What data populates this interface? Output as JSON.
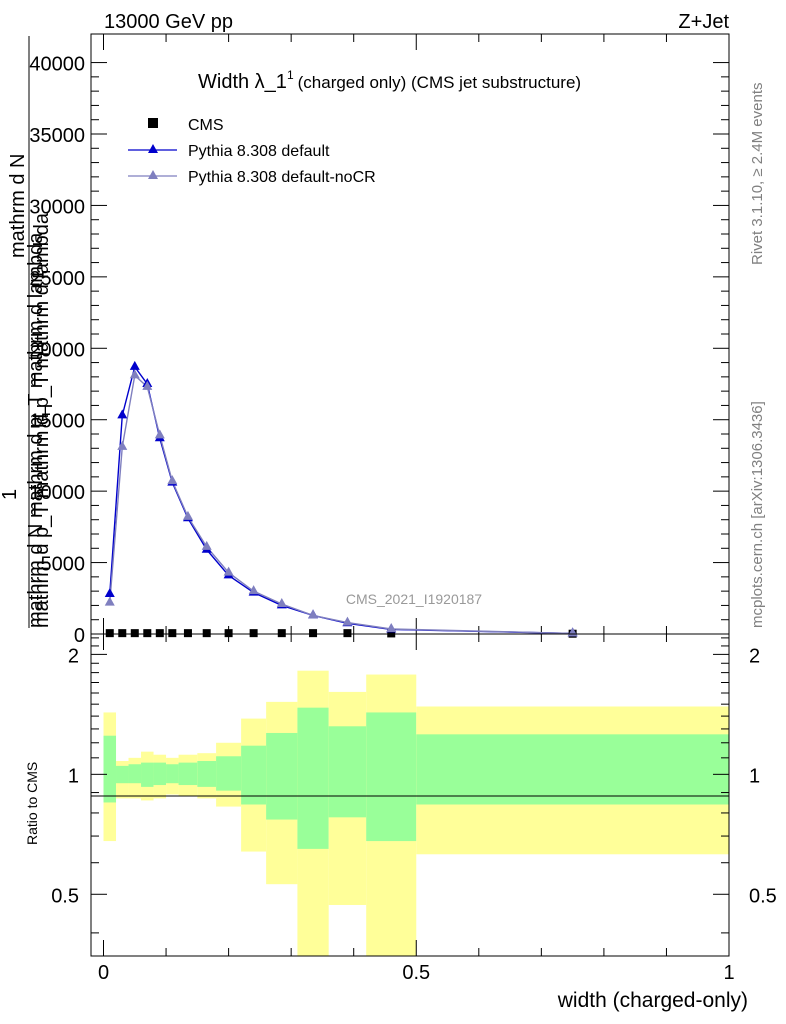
{
  "header": {
    "left": "13000 GeV pp",
    "right": "Z+Jet"
  },
  "side": {
    "rivet": "Rivet 3.1.10, ≥ 2.4M events",
    "mcplots": "mcplots.cern.ch [arXiv:1306.3436]"
  },
  "chart_data": [
    {
      "type": "line",
      "title_main": "Width λ_1",
      "title_sup": "1",
      "title_rest": "(charged only) (CMS jet substructure)",
      "watermark": "CMS_2021_I1920187",
      "ylabel_lines": [
        "mathrm d N",
        "mathrm d p_T mathrm d p_T mathrm d lambda",
        "1",
        "mathrm d N mathrm d p_T mathrm d lambda"
      ],
      "ylabel_main": "1",
      "xlim": [
        -0.02,
        1.0
      ],
      "ylim": [
        0,
        42000
      ],
      "yticks": [
        0,
        5000,
        10000,
        15000,
        20000,
        25000,
        30000,
        35000,
        40000
      ],
      "ytick_labels": [
        "0",
        "5000",
        "10000",
        "15000",
        "20000",
        "25000",
        "30000",
        "35000",
        "40000"
      ],
      "legend_position": "top-left",
      "legend": [
        {
          "name": "CMS",
          "marker": "square",
          "color": "#000000"
        },
        {
          "name": "Pythia 8.308 default",
          "marker": "triangle",
          "color": "#0000cc"
        },
        {
          "name": "Pythia 8.308 default-noCR",
          "marker": "triangle",
          "color": "#7f7fbf"
        }
      ],
      "series": [
        {
          "name": "CMS",
          "color": "#000000",
          "x": [
            0.01,
            0.03,
            0.05,
            0.07,
            0.09,
            0.11,
            0.135,
            0.165,
            0.2,
            0.24,
            0.285,
            0.335,
            0.39,
            0.46,
            0.75
          ],
          "y": [
            60,
            60,
            60,
            60,
            60,
            60,
            60,
            60,
            60,
            60,
            60,
            60,
            60,
            40,
            20
          ]
        },
        {
          "name": "Pythia 8.308 default",
          "color": "#0000cc",
          "x": [
            0.01,
            0.03,
            0.05,
            0.07,
            0.09,
            0.11,
            0.135,
            0.165,
            0.2,
            0.24,
            0.285,
            0.335,
            0.39,
            0.46,
            0.75
          ],
          "y": [
            2800,
            15300,
            18700,
            17500,
            13700,
            10600,
            8100,
            5900,
            4100,
            2900,
            2000,
            1300,
            750,
            320,
            40
          ]
        },
        {
          "name": "Pythia 8.308 default-noCR",
          "color": "#7f7fbf",
          "x": [
            0.01,
            0.03,
            0.05,
            0.07,
            0.09,
            0.11,
            0.135,
            0.165,
            0.2,
            0.24,
            0.285,
            0.335,
            0.39,
            0.46,
            0.75
          ],
          "y": [
            2200,
            13100,
            18100,
            17300,
            13900,
            10700,
            8200,
            6100,
            4300,
            3000,
            2100,
            1300,
            800,
            350,
            40
          ]
        }
      ]
    },
    {
      "type": "area",
      "ylabel": "Ratio to CMS",
      "xlabel": "width (charged-only)",
      "xlim": [
        -0.02,
        1.0
      ],
      "ylim": [
        0.35,
        2.25
      ],
      "xticks": [
        0,
        0.5,
        1
      ],
      "xtick_labels": [
        "0",
        "0.5",
        "1"
      ],
      "yticks": [
        0.5,
        1,
        2
      ],
      "ytick_labels": [
        "0.5",
        "1",
        "2"
      ],
      "band_colors": {
        "stat": "#99ff99",
        "total": "#ffff99"
      },
      "bins": [
        {
          "x0": 0.0,
          "x1": 0.02,
          "outer_lo": 0.68,
          "outer_hi": 1.43,
          "inner_lo": 0.85,
          "inner_hi": 1.25
        },
        {
          "x0": 0.02,
          "x1": 0.04,
          "outer_lo": 0.87,
          "outer_hi": 1.08,
          "inner_lo": 0.95,
          "inner_hi": 1.05
        },
        {
          "x0": 0.04,
          "x1": 0.06,
          "outer_lo": 0.87,
          "outer_hi": 1.1,
          "inner_lo": 0.95,
          "inner_hi": 1.06
        },
        {
          "x0": 0.06,
          "x1": 0.08,
          "outer_lo": 0.86,
          "outer_hi": 1.14,
          "inner_lo": 0.93,
          "inner_hi": 1.07
        },
        {
          "x0": 0.08,
          "x1": 0.1,
          "outer_lo": 0.87,
          "outer_hi": 1.12,
          "inner_lo": 0.94,
          "inner_hi": 1.07
        },
        {
          "x0": 0.1,
          "x1": 0.12,
          "outer_lo": 0.89,
          "outer_hi": 1.1,
          "inner_lo": 0.95,
          "inner_hi": 1.06
        },
        {
          "x0": 0.12,
          "x1": 0.15,
          "outer_lo": 0.88,
          "outer_hi": 1.12,
          "inner_lo": 0.94,
          "inner_hi": 1.07
        },
        {
          "x0": 0.15,
          "x1": 0.18,
          "outer_lo": 0.87,
          "outer_hi": 1.13,
          "inner_lo": 0.93,
          "inner_hi": 1.08
        },
        {
          "x0": 0.18,
          "x1": 0.22,
          "outer_lo": 0.83,
          "outer_hi": 1.2,
          "inner_lo": 0.91,
          "inner_hi": 1.11
        },
        {
          "x0": 0.22,
          "x1": 0.26,
          "outer_lo": 0.64,
          "outer_hi": 1.38,
          "inner_lo": 0.84,
          "inner_hi": 1.18
        },
        {
          "x0": 0.26,
          "x1": 0.31,
          "outer_lo": 0.53,
          "outer_hi": 1.52,
          "inner_lo": 0.77,
          "inner_hi": 1.27
        },
        {
          "x0": 0.31,
          "x1": 0.36,
          "outer_lo": 0.35,
          "outer_hi": 1.82,
          "inner_lo": 0.65,
          "inner_hi": 1.47
        },
        {
          "x0": 0.36,
          "x1": 0.42,
          "outer_lo": 0.47,
          "outer_hi": 1.61,
          "inner_lo": 0.78,
          "inner_hi": 1.32
        },
        {
          "x0": 0.42,
          "x1": 0.5,
          "outer_lo": 0.35,
          "outer_hi": 1.78,
          "inner_lo": 0.68,
          "inner_hi": 1.43
        },
        {
          "x0": 0.5,
          "x1": 1.0,
          "outer_lo": 0.63,
          "outer_hi": 1.48,
          "inner_lo": 0.84,
          "inner_hi": 1.26
        }
      ]
    }
  ]
}
